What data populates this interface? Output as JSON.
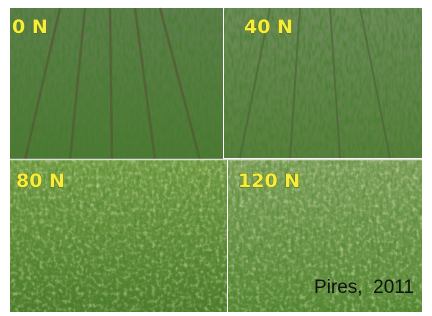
{
  "panels": [
    {
      "label": "0 N"
    },
    {
      "label": "40 N"
    },
    {
      "label": "80 N"
    },
    {
      "label": "120 N"
    }
  ],
  "caption": "Pires,  2011"
}
